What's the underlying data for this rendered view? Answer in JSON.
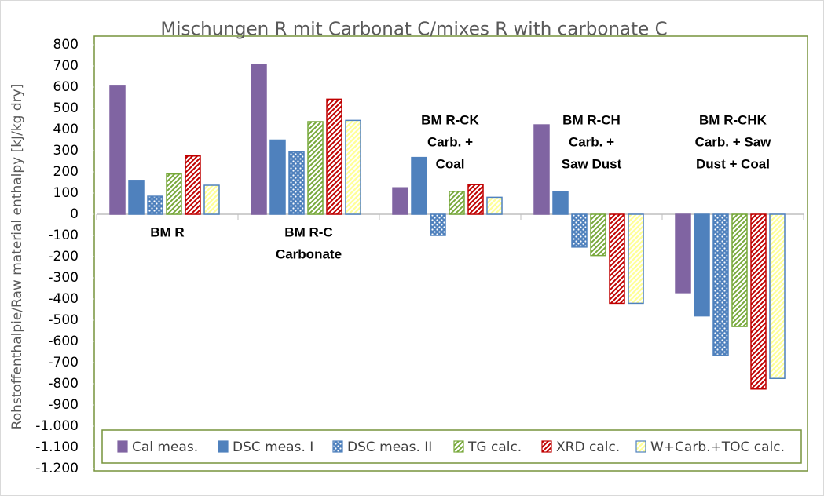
{
  "chart_data": {
    "type": "bar",
    "title": "Mischungen R mit Carbonat C/mixes R with carbonate C",
    "y_label": "Rohstoffenthalpie/Raw material enthalpy [kJ/kg dry]",
    "categories": [
      [
        "BM R"
      ],
      [
        "BM R-C",
        "Carbonate"
      ],
      [
        "BM R-CK",
        "Carb. +",
        "Coal"
      ],
      [
        "BM R-CH",
        "Carb. +",
        "Saw Dust"
      ],
      [
        "BM R-CHK",
        "Carb. + Saw",
        "Dust + Coal"
      ]
    ],
    "series": [
      {
        "name": "Cal meas.",
        "color": "#8064a2",
        "edge": "#8064a2",
        "pattern": "solid",
        "values": [
          608,
          708,
          125,
          422,
          -370
        ]
      },
      {
        "name": "DSC meas. I",
        "color": "#4f81bd",
        "edge": "#4f81bd",
        "pattern": "solid",
        "values": [
          160,
          350,
          268,
          105,
          -480
        ]
      },
      {
        "name": "DSC meas. II",
        "color": "#4f81bd",
        "edge": "#4f81bd",
        "pattern": "dots",
        "values": [
          85,
          295,
          -100,
          -155,
          -665
        ]
      },
      {
        "name": "TG calc.",
        "color": "#77a83a",
        "edge": "#77a83a",
        "pattern": "hatch",
        "values": [
          190,
          437,
          108,
          -195,
          -530
        ]
      },
      {
        "name": "XRD calc.",
        "color": "#c00000",
        "edge": "#c00000",
        "pattern": "hatch",
        "values": [
          275,
          543,
          140,
          -420,
          -825
        ]
      },
      {
        "name": "W+Carb.+TOC calc.",
        "color": "#ffff99",
        "edge": "#4f81bd",
        "pattern": "hatch",
        "values": [
          137,
          443,
          80,
          -420,
          -775
        ]
      }
    ],
    "ylim": [
      -1200,
      800
    ],
    "yticks": [
      800,
      700,
      600,
      500,
      400,
      300,
      200,
      100,
      0,
      -100,
      -200,
      -300,
      -400,
      -500,
      -600,
      -700,
      -800,
      -900,
      {
        "value": -1000,
        "label": "-1.000"
      },
      {
        "value": -1100,
        "label": "-1.100"
      },
      {
        "value": -1200,
        "label": "-1.200"
      }
    ],
    "legend": "bottom"
  }
}
